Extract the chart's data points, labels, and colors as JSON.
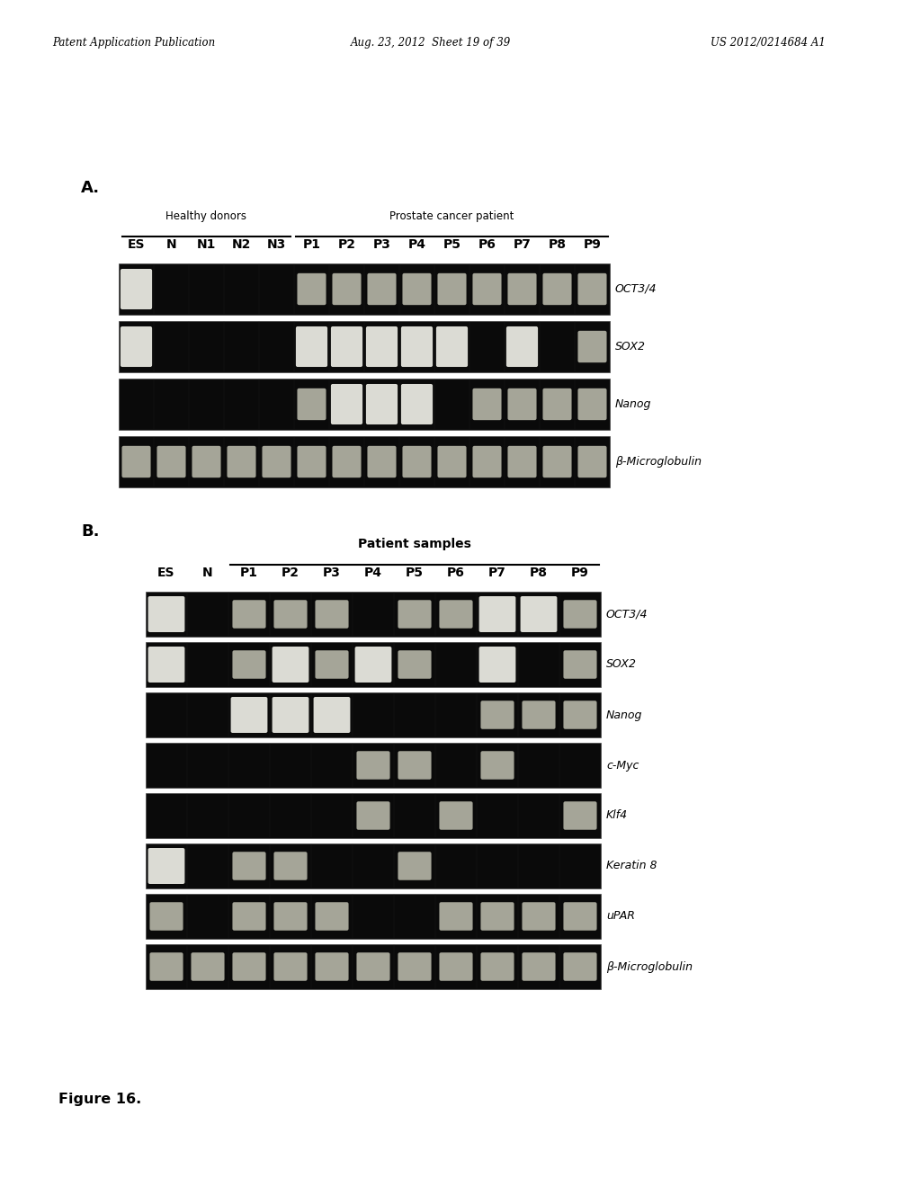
{
  "header_left": "Patent Application Publication",
  "header_center": "Aug. 23, 2012  Sheet 19 of 39",
  "header_right": "US 2012/0214684 A1",
  "figure_caption": "Figure 16.",
  "panel_A": {
    "label": "A.",
    "group1_label": "Healthy donors",
    "group2_label": "Prostate cancer patient",
    "columns": [
      "ES",
      "N",
      "N1",
      "N2",
      "N3",
      "P1",
      "P2",
      "P3",
      "P4",
      "P5",
      "P6",
      "P7",
      "P8",
      "P9"
    ],
    "group1_cols_idx": [
      0,
      4
    ],
    "group2_cols_idx": [
      5,
      13
    ],
    "rows": [
      {
        "label": "OCT3/4",
        "bands": [
          2,
          0,
          0,
          0,
          0,
          1,
          1,
          1,
          1,
          1,
          1,
          1,
          1,
          1
        ]
      },
      {
        "label": "SOX2",
        "bands": [
          2,
          0,
          0,
          0,
          0,
          2,
          2,
          2,
          2,
          2,
          0,
          2,
          0,
          1
        ]
      },
      {
        "label": "Nanog",
        "bands": [
          0,
          0,
          0,
          0,
          0,
          1,
          2,
          2,
          2,
          0,
          1,
          1,
          1,
          1
        ]
      },
      {
        "label": "β-Microglobulin",
        "bands": [
          1,
          1,
          1,
          1,
          1,
          1,
          1,
          1,
          1,
          1,
          1,
          1,
          1,
          1
        ]
      }
    ]
  },
  "panel_B": {
    "label": "B.",
    "group_label": "Patient samples",
    "columns": [
      "ES",
      "N",
      "P1",
      "P2",
      "P3",
      "P4",
      "P5",
      "P6",
      "P7",
      "P8",
      "P9"
    ],
    "group_cols_idx": [
      2,
      10
    ],
    "rows": [
      {
        "label": "OCT3/4",
        "bands": [
          2,
          0,
          1,
          1,
          1,
          0,
          1,
          1,
          2,
          2,
          1
        ]
      },
      {
        "label": "SOX2",
        "bands": [
          2,
          0,
          1,
          2,
          1,
          2,
          1,
          0,
          2,
          0,
          1
        ]
      },
      {
        "label": "Nanog",
        "bands": [
          0,
          0,
          2,
          2,
          2,
          0,
          0,
          0,
          1,
          1,
          1
        ]
      },
      {
        "label": "c-Myc",
        "bands": [
          0,
          0,
          0,
          0,
          0,
          1,
          1,
          0,
          1,
          0,
          0
        ]
      },
      {
        "label": "Klf4",
        "bands": [
          0,
          0,
          0,
          0,
          0,
          1,
          0,
          1,
          0,
          0,
          1
        ]
      },
      {
        "label": "Keratin 8",
        "bands": [
          2,
          0,
          1,
          1,
          0,
          0,
          1,
          0,
          0,
          0,
          0
        ]
      },
      {
        "label": "uPAR",
        "bands": [
          1,
          0,
          1,
          1,
          1,
          0,
          0,
          1,
          1,
          1,
          1
        ]
      },
      {
        "label": "β-Microglobulin",
        "bands": [
          1,
          1,
          1,
          1,
          1,
          1,
          1,
          1,
          1,
          1,
          1
        ]
      }
    ]
  },
  "bg_color": "#ffffff",
  "gel_bg": "#0a0a0a",
  "header_font_size": 8.5,
  "col_label_font_size": 10,
  "row_label_font_size": 9,
  "panel_label_font_size": 13
}
